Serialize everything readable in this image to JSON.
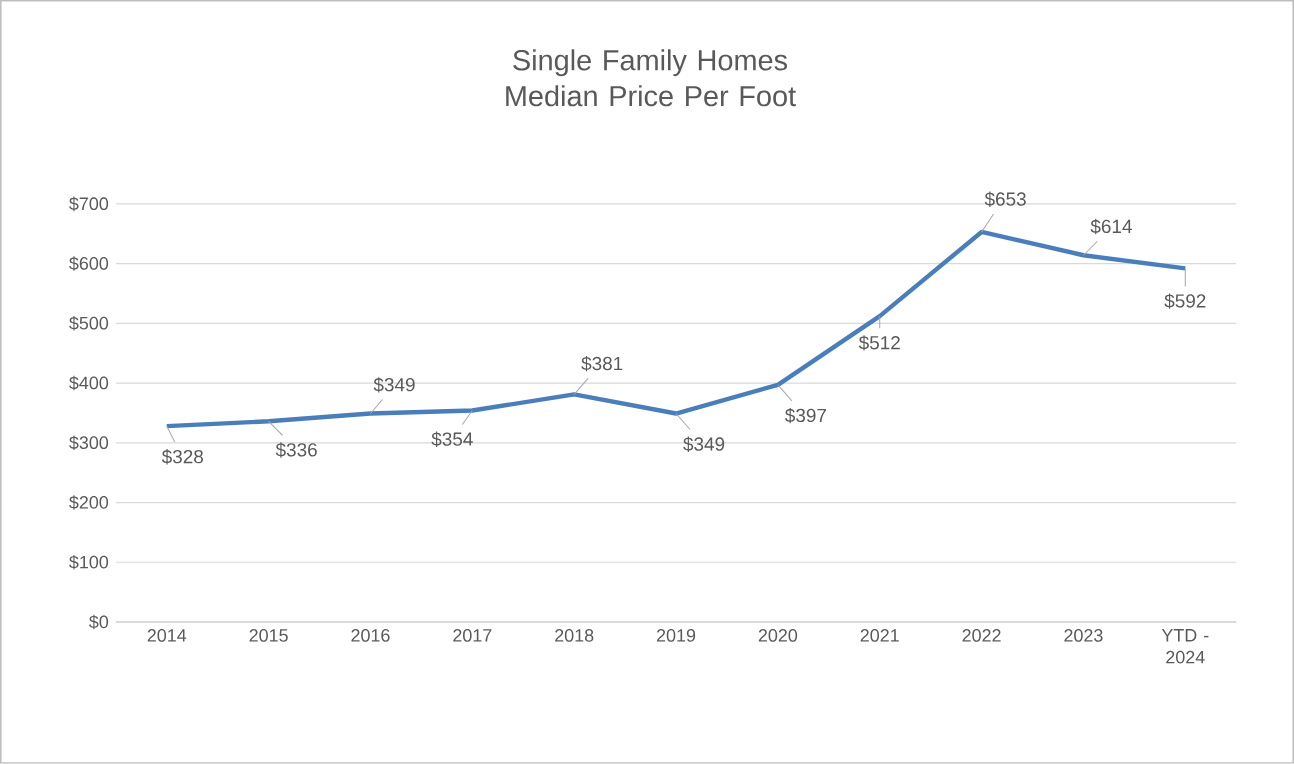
{
  "chart_data": {
    "type": "line",
    "title": "Single Family Homes Median Price Per Foot",
    "categories": [
      "2014",
      "2015",
      "2016",
      "2017",
      "2018",
      "2019",
      "2020",
      "2021",
      "2022",
      "2023",
      "YTD - 2024"
    ],
    "series": [
      {
        "color": "#4a7ebb",
        "values": [
          328,
          336,
          349,
          354,
          381,
          349,
          397,
          512,
          653,
          614,
          592
        ]
      }
    ],
    "value_labels": [
      "$328",
      "$336",
      "$349",
      "$354",
      "$381",
      "$349",
      "$397",
      "$512",
      "$653",
      "$614",
      "$592"
    ],
    "ylim": [
      0,
      700
    ],
    "yticks": [
      {
        "value": 0,
        "label": "$0"
      },
      {
        "value": 100,
        "label": "$100"
      },
      {
        "value": 200,
        "label": "$200"
      },
      {
        "value": 300,
        "label": "$300"
      },
      {
        "value": 400,
        "label": "$400"
      },
      {
        "value": 500,
        "label": "$500"
      },
      {
        "value": 600,
        "label": "$600"
      },
      {
        "value": 700,
        "label": "$700"
      }
    ],
    "grid": "y",
    "marker": "none",
    "line_style": "solid"
  }
}
